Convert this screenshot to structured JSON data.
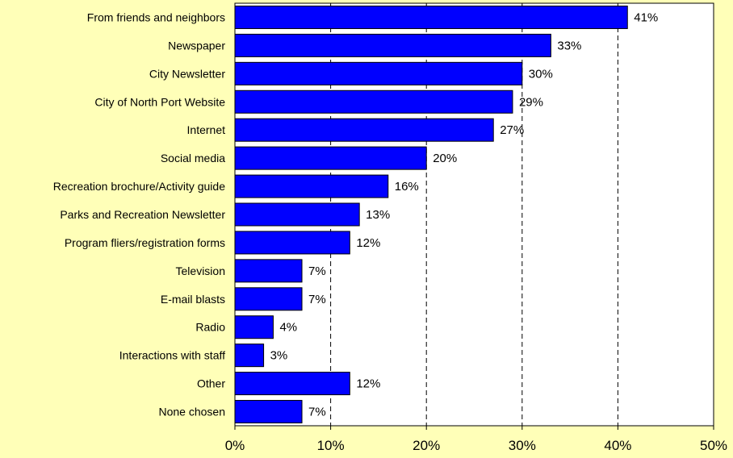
{
  "chart_data": {
    "type": "bar",
    "orientation": "horizontal",
    "categories": [
      "From friends and neighbors",
      "Newspaper",
      "City Newsletter",
      "City of North Port Website",
      "Internet",
      "Social media",
      "Recreation brochure/Activity guide",
      "Parks and Recreation Newsletter",
      "Program fliers/registration forms",
      "Television",
      "E-mail blasts",
      "Radio",
      "Interactions with staff",
      "Other",
      "None chosen"
    ],
    "values": [
      41,
      33,
      30,
      29,
      27,
      20,
      16,
      13,
      12,
      7,
      7,
      4,
      3,
      12,
      7
    ],
    "value_labels": [
      "41%",
      "33%",
      "30%",
      "29%",
      "27%",
      "20%",
      "16%",
      "13%",
      "12%",
      "7%",
      "7%",
      "4%",
      "3%",
      "12%",
      "7%"
    ],
    "xlim": [
      0,
      50
    ],
    "x_ticks": [
      0,
      10,
      20,
      30,
      40,
      50
    ],
    "x_tick_labels": [
      "0%",
      "10%",
      "20%",
      "30%",
      "40%",
      "50%"
    ],
    "gridlines": "vertical-dashed",
    "bar_color": "#0000FF",
    "background_color": "#FFFFB8",
    "plot_background_color": "#FFFFFF"
  }
}
